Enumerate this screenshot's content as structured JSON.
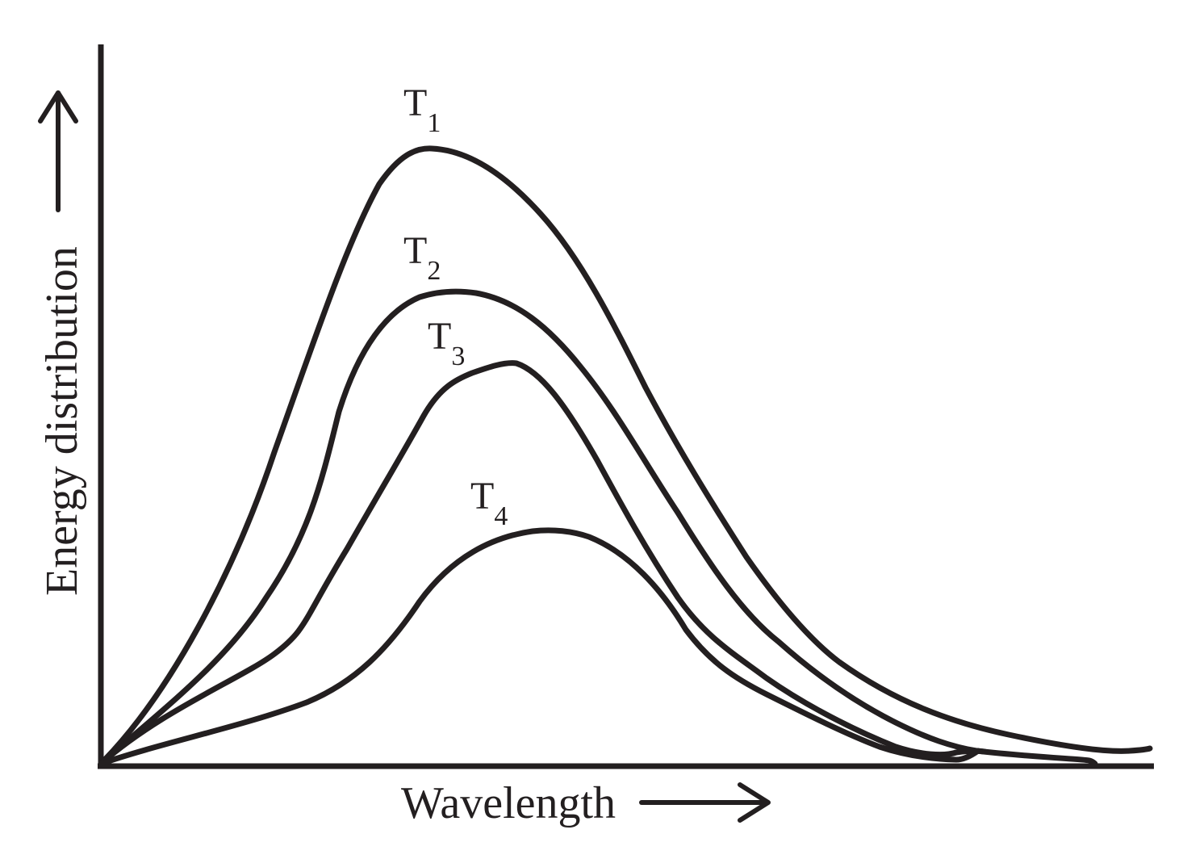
{
  "axes": {
    "x_label": "Wavelength",
    "y_label": "Energy distribution"
  },
  "curves": [
    {
      "label_main": "T",
      "label_sub": "1"
    },
    {
      "label_main": "T",
      "label_sub": "2"
    },
    {
      "label_main": "T",
      "label_sub": "3"
    },
    {
      "label_main": "T",
      "label_sub": "4"
    }
  ],
  "colors": {
    "ink": "#231f20",
    "background": "#ffffff"
  }
}
